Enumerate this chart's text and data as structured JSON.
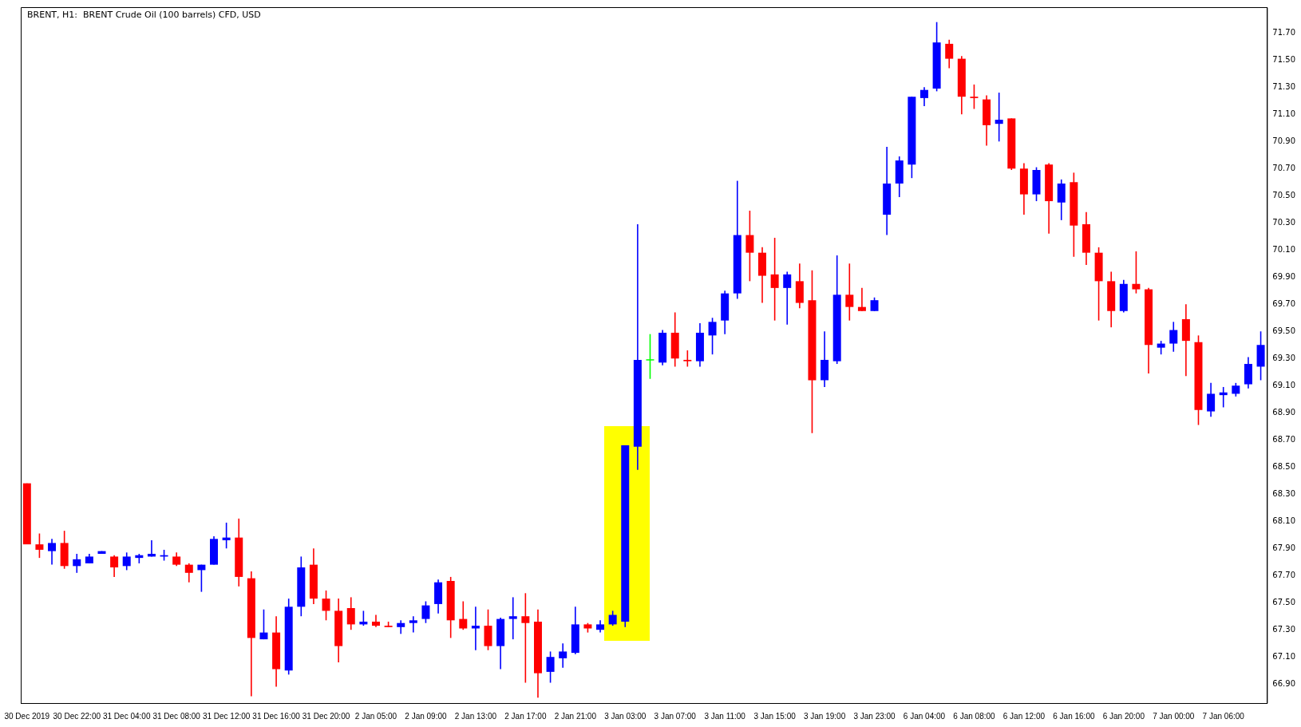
{
  "chart_data": {
    "type": "candlestick",
    "title": "BRENT, H1:  BRENT Crude Oil (100 barrels) CFD, USD",
    "categories": [
      "30 Dec 2019",
      null,
      null,
      null,
      "30 Dec 22:00",
      null,
      null,
      null,
      "31 Dec 04:00",
      null,
      null,
      null,
      "31 Dec 08:00",
      null,
      null,
      null,
      "31 Dec 12:00",
      null,
      null,
      null,
      "31 Dec 16:00",
      null,
      null,
      null,
      "31 Dec 20:00",
      null,
      null,
      null,
      "2 Jan 05:00",
      null,
      null,
      null,
      "2 Jan 09:00",
      null,
      null,
      null,
      "2 Jan 13:00",
      null,
      null,
      null,
      "2 Jan 17:00",
      null,
      null,
      null,
      "2 Jan 21:00",
      null,
      null,
      null,
      "3 Jan 03:00",
      null,
      null,
      null,
      "3 Jan 07:00",
      null,
      null,
      null,
      "3 Jan 11:00",
      null,
      null,
      null,
      "3 Jan 15:00",
      null,
      null,
      null,
      "3 Jan 19:00",
      null,
      null,
      null,
      "3 Jan 23:00",
      null,
      null,
      null,
      "6 Jan 04:00",
      null,
      null,
      null,
      "6 Jan 08:00",
      null,
      null,
      null,
      "6 Jan 12:00",
      null,
      null,
      null,
      "6 Jan 16:00",
      null,
      null,
      null,
      "6 Jan 20:00",
      null,
      null,
      null,
      "7 Jan 00:00",
      null,
      null,
      null,
      "7 Jan 06:00",
      null,
      null,
      null
    ],
    "ohlc": [
      [
        68.38,
        68.38,
        67.93,
        67.93
      ],
      [
        67.93,
        68.01,
        67.83,
        67.89
      ],
      [
        67.88,
        67.97,
        67.78,
        67.94
      ],
      [
        67.94,
        68.03,
        67.75,
        67.77
      ],
      [
        67.77,
        67.86,
        67.72,
        67.82
      ],
      [
        67.79,
        67.86,
        67.79,
        67.84
      ],
      [
        67.86,
        67.88,
        67.86,
        67.88
      ],
      [
        67.84,
        67.85,
        67.69,
        67.76
      ],
      [
        67.77,
        67.87,
        67.74,
        67.84
      ],
      [
        67.83,
        67.86,
        67.79,
        67.85
      ],
      [
        67.84,
        67.96,
        67.84,
        67.86
      ],
      [
        67.84,
        67.89,
        67.81,
        67.85
      ],
      [
        67.84,
        67.87,
        67.77,
        67.78
      ],
      [
        67.78,
        67.79,
        67.65,
        67.72
      ],
      [
        67.74,
        67.78,
        67.58,
        67.78
      ],
      [
        67.78,
        67.99,
        67.78,
        67.97
      ],
      [
        67.96,
        68.09,
        67.9,
        67.98
      ],
      [
        67.98,
        68.12,
        67.62,
        67.69
      ],
      [
        67.68,
        67.73,
        66.81,
        67.24
      ],
      [
        67.23,
        67.45,
        67.23,
        67.28
      ],
      [
        67.28,
        67.4,
        66.88,
        67.01
      ],
      [
        67.0,
        67.53,
        66.97,
        67.47
      ],
      [
        67.47,
        67.84,
        67.4,
        67.76
      ],
      [
        67.78,
        67.9,
        67.49,
        67.53
      ],
      [
        67.53,
        67.59,
        67.37,
        67.44
      ],
      [
        67.44,
        67.53,
        67.06,
        67.18
      ],
      [
        67.46,
        67.54,
        67.3,
        67.34
      ],
      [
        67.34,
        67.44,
        67.33,
        67.36
      ],
      [
        67.36,
        67.41,
        67.32,
        67.33
      ],
      [
        67.33,
        67.36,
        67.32,
        67.32
      ],
      [
        67.32,
        67.37,
        67.27,
        67.35
      ],
      [
        67.35,
        67.4,
        67.28,
        67.37
      ],
      [
        67.38,
        67.51,
        67.35,
        67.48
      ],
      [
        67.49,
        67.67,
        67.42,
        67.65
      ],
      [
        67.66,
        67.69,
        67.24,
        67.37
      ],
      [
        67.38,
        67.51,
        67.3,
        67.31
      ],
      [
        67.31,
        67.47,
        67.15,
        67.33
      ],
      [
        67.33,
        67.45,
        67.15,
        67.18
      ],
      [
        67.18,
        67.39,
        67.01,
        67.38
      ],
      [
        67.38,
        67.54,
        67.23,
        67.4
      ],
      [
        67.4,
        67.57,
        66.91,
        67.35
      ],
      [
        67.36,
        67.45,
        66.8,
        66.98
      ],
      [
        66.99,
        67.14,
        66.91,
        67.1
      ],
      [
        67.09,
        67.2,
        67.02,
        67.14
      ],
      [
        67.13,
        67.47,
        67.12,
        67.34
      ],
      [
        67.34,
        67.35,
        67.28,
        67.31
      ],
      [
        67.3,
        67.37,
        67.28,
        67.34
      ],
      [
        67.34,
        67.44,
        67.33,
        67.41
      ],
      [
        67.36,
        68.66,
        67.32,
        68.66
      ],
      [
        68.65,
        70.29,
        68.48,
        69.29
      ],
      [
        69.29,
        69.48,
        69.15,
        69.29
      ],
      [
        69.27,
        69.51,
        69.25,
        69.49
      ],
      [
        69.49,
        69.64,
        69.24,
        69.3
      ],
      [
        69.29,
        69.36,
        69.24,
        69.28
      ],
      [
        69.28,
        69.56,
        69.24,
        69.49
      ],
      [
        69.47,
        69.6,
        69.33,
        69.57
      ],
      [
        69.58,
        69.8,
        69.48,
        69.78
      ],
      [
        69.78,
        70.61,
        69.74,
        70.21
      ],
      [
        70.21,
        70.39,
        69.87,
        70.08
      ],
      [
        70.08,
        70.12,
        69.71,
        69.91
      ],
      [
        69.92,
        70.19,
        69.58,
        69.82
      ],
      [
        69.82,
        69.94,
        69.55,
        69.92
      ],
      [
        69.87,
        70.0,
        69.67,
        69.71
      ],
      [
        69.73,
        69.95,
        68.75,
        69.14
      ],
      [
        69.14,
        69.5,
        69.09,
        69.29
      ],
      [
        69.28,
        70.06,
        69.26,
        69.77
      ],
      [
        69.77,
        70.0,
        69.58,
        69.68
      ],
      [
        69.68,
        69.82,
        69.65,
        69.65
      ],
      [
        69.65,
        69.75,
        69.65,
        69.73
      ],
      [
        70.36,
        70.86,
        70.21,
        70.59
      ],
      [
        70.59,
        70.79,
        70.49,
        70.76
      ],
      [
        70.73,
        71.23,
        70.63,
        71.23
      ],
      [
        71.22,
        71.3,
        71.16,
        71.28
      ],
      [
        71.29,
        71.78,
        71.27,
        71.63
      ],
      [
        71.62,
        71.65,
        71.44,
        71.51
      ],
      [
        71.51,
        71.53,
        71.1,
        71.23
      ],
      [
        71.23,
        71.32,
        71.14,
        71.22
      ],
      [
        71.21,
        71.24,
        70.87,
        71.02
      ],
      [
        71.03,
        71.26,
        70.9,
        71.06
      ],
      [
        71.07,
        71.07,
        70.69,
        70.7
      ],
      [
        70.7,
        70.74,
        70.36,
        70.51
      ],
      [
        70.51,
        70.71,
        70.46,
        70.69
      ],
      [
        70.73,
        70.74,
        70.22,
        70.46
      ],
      [
        70.45,
        70.62,
        70.32,
        70.59
      ],
      [
        70.6,
        70.67,
        70.05,
        70.28
      ],
      [
        70.29,
        70.38,
        69.99,
        70.08
      ],
      [
        70.08,
        70.12,
        69.58,
        69.87
      ],
      [
        69.87,
        69.94,
        69.53,
        69.65
      ],
      [
        69.65,
        69.88,
        69.64,
        69.85
      ],
      [
        69.85,
        70.09,
        69.78,
        69.81
      ],
      [
        69.81,
        69.82,
        69.19,
        69.4
      ],
      [
        69.38,
        69.43,
        69.33,
        69.41
      ],
      [
        69.41,
        69.57,
        69.35,
        69.51
      ],
      [
        69.59,
        69.7,
        69.17,
        69.43
      ],
      [
        69.42,
        69.47,
        68.81,
        68.92
      ],
      [
        68.91,
        69.12,
        68.87,
        69.04
      ],
      [
        69.03,
        69.09,
        68.94,
        69.05
      ],
      [
        69.04,
        69.12,
        69.02,
        69.1
      ],
      [
        69.11,
        69.31,
        69.08,
        69.26
      ],
      [
        69.24,
        69.5,
        69.14,
        69.4
      ]
    ],
    "colors": [
      "#ff0000",
      "#ff0000",
      "#0000ff",
      "#ff0000",
      "#0000ff",
      "#0000ff",
      "#0000ff",
      "#ff0000",
      "#0000ff",
      "#0000ff",
      "#0000ff",
      "#0000ff",
      "#ff0000",
      "#ff0000",
      "#0000ff",
      "#0000ff",
      "#0000ff",
      "#ff0000",
      "#ff0000",
      "#0000ff",
      "#ff0000",
      "#0000ff",
      "#0000ff",
      "#ff0000",
      "#ff0000",
      "#ff0000",
      "#ff0000",
      "#0000ff",
      "#ff0000",
      "#ff0000",
      "#0000ff",
      "#0000ff",
      "#0000ff",
      "#0000ff",
      "#ff0000",
      "#ff0000",
      "#0000ff",
      "#ff0000",
      "#0000ff",
      "#0000ff",
      "#ff0000",
      "#ff0000",
      "#0000ff",
      "#0000ff",
      "#0000ff",
      "#ff0000",
      "#0000ff",
      "#0000ff",
      "#0000ff",
      "#0000ff",
      "#00ff00",
      "#0000ff",
      "#ff0000",
      "#ff0000",
      "#0000ff",
      "#0000ff",
      "#0000ff",
      "#0000ff",
      "#ff0000",
      "#ff0000",
      "#ff0000",
      "#0000ff",
      "#ff0000",
      "#ff0000",
      "#0000ff",
      "#0000ff",
      "#ff0000",
      "#ff0000",
      "#0000ff",
      "#0000ff",
      "#0000ff",
      "#0000ff",
      "#0000ff",
      "#0000ff",
      "#ff0000",
      "#ff0000",
      "#ff0000",
      "#ff0000",
      "#0000ff",
      "#ff0000",
      "#ff0000",
      "#0000ff",
      "#ff0000",
      "#0000ff",
      "#ff0000",
      "#ff0000",
      "#ff0000",
      "#ff0000",
      "#0000ff",
      "#ff0000",
      "#ff0000",
      "#0000ff",
      "#0000ff",
      "#ff0000",
      "#ff0000",
      "#0000ff",
      "#0000ff",
      "#0000ff",
      "#0000ff",
      "#0000ff"
    ],
    "ylim": [
      66.76,
      71.89
    ],
    "yticks": [
      {
        "value": 66.9,
        "label": "66.90"
      },
      {
        "value": 67.1,
        "label": "67.10"
      },
      {
        "value": 67.3,
        "label": "67.30"
      },
      {
        "value": 67.5,
        "label": "67.50"
      },
      {
        "value": 67.7,
        "label": "67.70"
      },
      {
        "value": 67.9,
        "label": "67.90"
      },
      {
        "value": 68.1,
        "label": "68.10"
      },
      {
        "value": 68.3,
        "label": "68.30"
      },
      {
        "value": 68.5,
        "label": "68.50"
      },
      {
        "value": 68.7,
        "label": "68.70"
      },
      {
        "value": 68.9,
        "label": "68.90"
      },
      {
        "value": 69.1,
        "label": "69.10"
      },
      {
        "value": 69.3,
        "label": "69.30"
      },
      {
        "value": 69.5,
        "label": "69.50"
      },
      {
        "value": 69.7,
        "label": "69.70"
      },
      {
        "value": 69.9,
        "label": "69.90"
      },
      {
        "value": 70.1,
        "label": "70.10"
      },
      {
        "value": 70.3,
        "label": "70.30"
      },
      {
        "value": 70.5,
        "label": "70.50"
      },
      {
        "value": 70.7,
        "label": "70.70"
      },
      {
        "value": 70.9,
        "label": "70.90"
      },
      {
        "value": 71.1,
        "label": "71.10"
      },
      {
        "value": 71.3,
        "label": "71.30"
      },
      {
        "value": 71.5,
        "label": "71.50"
      },
      {
        "value": 71.7,
        "label": "71.70"
      }
    ],
    "grid": false,
    "legend": false
  }
}
